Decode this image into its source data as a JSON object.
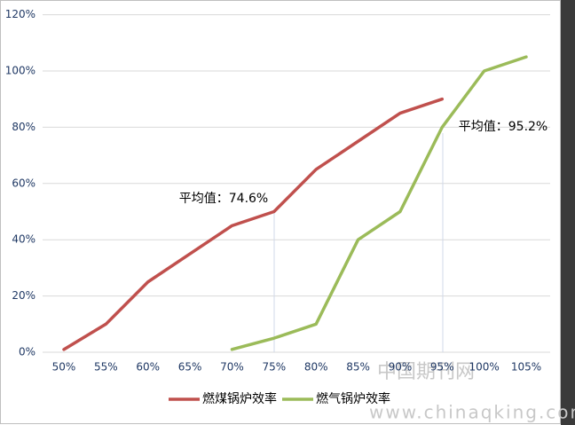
{
  "chart_data": {
    "type": "line",
    "categories": [
      "50%",
      "55%",
      "60%",
      "65%",
      "70%",
      "75%",
      "80%",
      "85%",
      "90%",
      "95%",
      "100%",
      "105%"
    ],
    "series": [
      {
        "name": "燃煤锅炉效率",
        "color": "#c0504d",
        "values": [
          1,
          10,
          25,
          35,
          45,
          50,
          65,
          75,
          85,
          90,
          null,
          null
        ]
      },
      {
        "name": "燃气锅炉效率",
        "color": "#9bbb59",
        "values": [
          null,
          null,
          null,
          null,
          1,
          5,
          10,
          40,
          50,
          80,
          100,
          105
        ]
      }
    ],
    "ylim": [
      0,
      120
    ],
    "yticks": [
      {
        "value": 0,
        "label": "0%"
      },
      {
        "value": 20,
        "label": "20%"
      },
      {
        "value": 40,
        "label": "40%"
      },
      {
        "value": 60,
        "label": "60%"
      },
      {
        "value": 80,
        "label": "80%"
      },
      {
        "value": 100,
        "label": "100%"
      },
      {
        "value": 120,
        "label": "120%"
      }
    ],
    "grid": true,
    "legend": "bottom",
    "annotations": [
      "平均值：74.6%",
      "平均值：95.2%"
    ],
    "watermark": [
      "中国期刊网",
      "www.chinaqking.com"
    ]
  }
}
